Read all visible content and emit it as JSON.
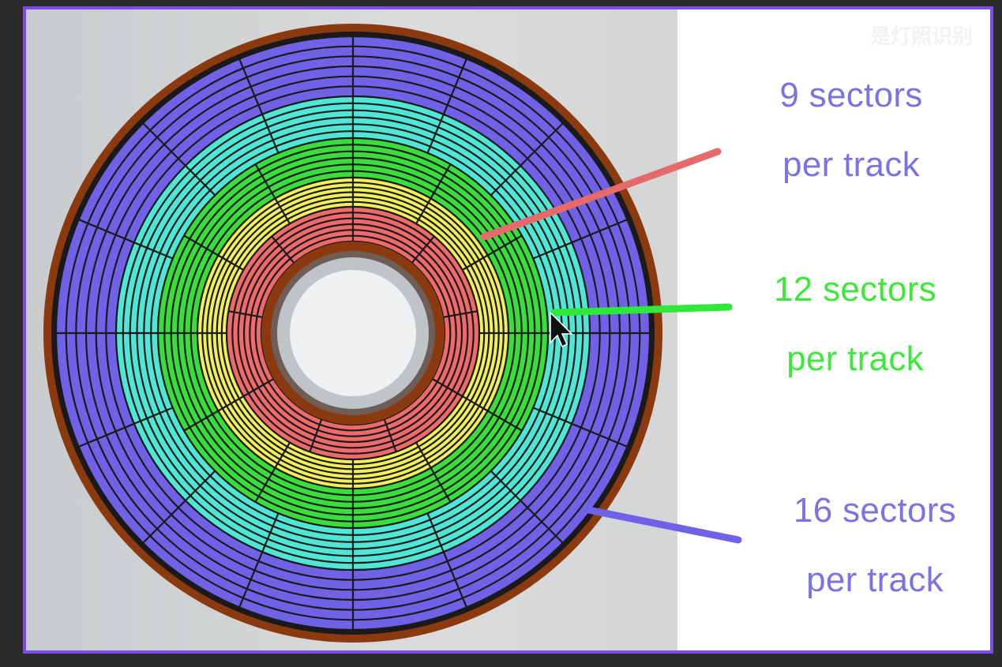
{
  "watermark": "是灯照识别",
  "labels": {
    "inner": {
      "line1": "9 sectors",
      "line2": "per track",
      "sectors": 9
    },
    "middle": {
      "line1": "12 sectors",
      "line2": "per track",
      "sectors": 12
    },
    "outer": {
      "line1": "16 sectors",
      "line2": "per track",
      "sectors": 16
    }
  },
  "colors": {
    "frame": "#7a4ce8",
    "brown": "#8b3a10",
    "outer_zone": "#6f62e6",
    "cyan_zone": "#4fe6d6",
    "green_zone": "#39dd3c",
    "yellow_zone": "#f2ef5c",
    "red_zone": "#ef6a6a",
    "inner_label": "#7b73e0",
    "middle_label": "#3ee73c",
    "outer_label": "#7b73e0",
    "pointer_red": "#e66a6a",
    "pointer_green": "#2ee83a",
    "pointer_blue": "#6f62e6"
  }
}
